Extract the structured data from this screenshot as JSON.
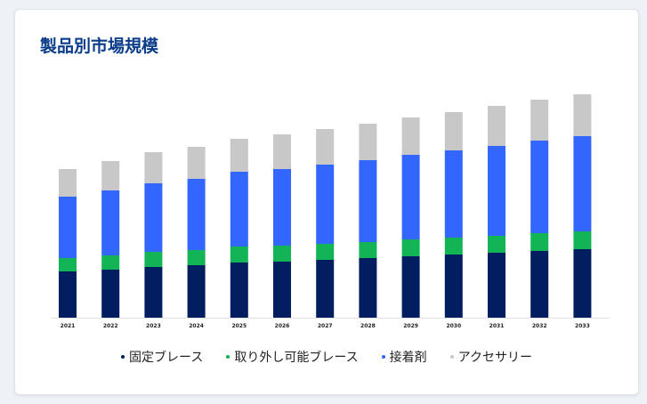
{
  "chart_data": {
    "type": "bar",
    "stacked": true,
    "title": "製品別市場規模",
    "categories": [
      "2021",
      "2022",
      "2023",
      "2024",
      "2025",
      "2026",
      "2027",
      "2028",
      "2029",
      "2030",
      "2031",
      "2032",
      "2033"
    ],
    "series": [
      {
        "name": "固定ブレース",
        "color": "#021e61",
        "values": [
          52,
          54,
          57,
          59,
          62,
          63,
          65,
          67,
          69,
          71,
          73,
          75,
          77
        ]
      },
      {
        "name": "取り外し可能ブレース",
        "color": "#12b456",
        "values": [
          15,
          16,
          17,
          17,
          18,
          18,
          18,
          18,
          19,
          19,
          19,
          20,
          20
        ]
      },
      {
        "name": "接着剤",
        "color": "#3366ff",
        "values": [
          69,
          73,
          77,
          80,
          84,
          86,
          89,
          92,
          95,
          98,
          101,
          104,
          107
        ]
      },
      {
        "name": "アクセサリー",
        "color": "#c8c8c8",
        "values": [
          31,
          33,
          35,
          36,
          37,
          39,
          40,
          41,
          42,
          43,
          45,
          46,
          47
        ]
      }
    ],
    "legend_position": "bottom",
    "grid": false
  }
}
